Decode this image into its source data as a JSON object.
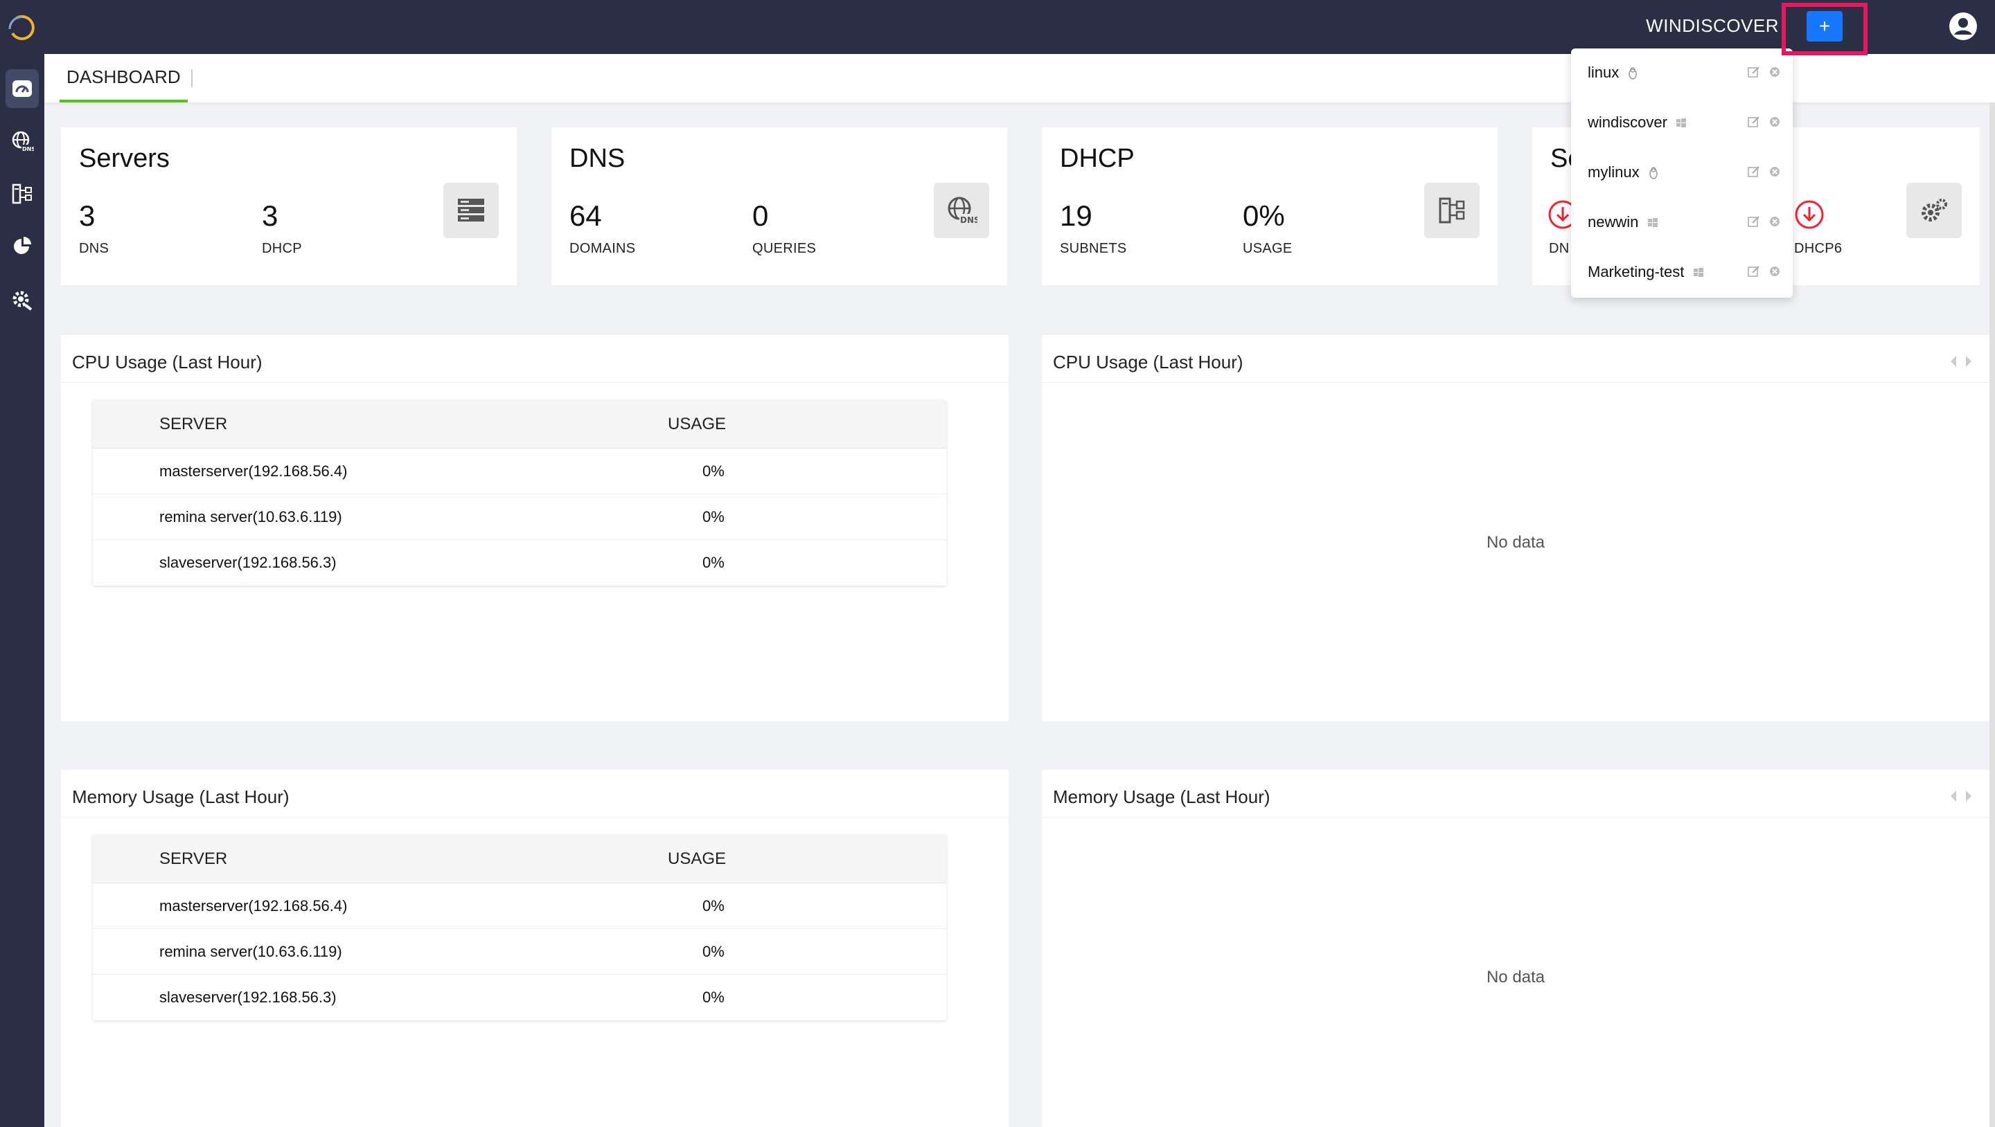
{
  "topbar": {
    "brand": "WINDISCOVER",
    "add_label": "+"
  },
  "tabs": [
    {
      "label": "DASHBOARD"
    }
  ],
  "cards": {
    "servers": {
      "title": "Servers",
      "stats": [
        {
          "value": "3",
          "label": "DNS"
        },
        {
          "value": "3",
          "label": "DHCP"
        }
      ],
      "icon": "server-stack-icon"
    },
    "dns": {
      "title": "DNS",
      "stats": [
        {
          "value": "64",
          "label": "DOMAINS"
        },
        {
          "value": "0",
          "label": "QUERIES"
        }
      ],
      "icon": "globe-dns-icon"
    },
    "dhcp": {
      "title": "DHCP",
      "stats": [
        {
          "value": "19",
          "label": "SUBNETS"
        },
        {
          "value": "0%",
          "label": "USAGE"
        }
      ],
      "icon": "dhcp-tree-icon"
    },
    "services": {
      "title": "Se",
      "labels": [
        "DN",
        "DHCP6"
      ],
      "icon": "gears-icon",
      "status_color": "#f5222d"
    }
  },
  "cpu_panel": {
    "title": "CPU Usage (Last Hour)",
    "headers": [
      "SERVER",
      "USAGE"
    ],
    "rows": [
      {
        "server": "masterserver(192.168.56.4)",
        "usage": "0%"
      },
      {
        "server": "remina server(10.63.6.119)",
        "usage": "0%"
      },
      {
        "server": "slaveserver(192.168.56.3)",
        "usage": "0%"
      }
    ]
  },
  "cpu_chart_panel": {
    "title": "CPU Usage (Last Hour)",
    "empty": "No data"
  },
  "mem_panel": {
    "title": "Memory Usage (Last Hour)",
    "headers": [
      "SERVER",
      "USAGE"
    ],
    "rows": [
      {
        "server": "masterserver(192.168.56.4)",
        "usage": "0%"
      },
      {
        "server": "remina server(10.63.6.119)",
        "usage": "0%"
      },
      {
        "server": "slaveserver(192.168.56.3)",
        "usage": "0%"
      }
    ]
  },
  "mem_chart_panel": {
    "title": "Memory Usage (Last Hour)",
    "empty": "No data"
  },
  "dropdown": {
    "items": [
      {
        "name": "linux",
        "os": "linux-icon"
      },
      {
        "name": "windiscover",
        "os": "windows-icon"
      },
      {
        "name": "mylinux",
        "os": "linux-icon"
      },
      {
        "name": "newwin",
        "os": "windows-icon"
      },
      {
        "name": "Marketing-test",
        "os": "windows-icon"
      }
    ]
  },
  "colors": {
    "sidebar": "#2b2f45",
    "accent": "#1677ff",
    "highlight": "#e8175d",
    "tab_underline": "#52c41a"
  }
}
